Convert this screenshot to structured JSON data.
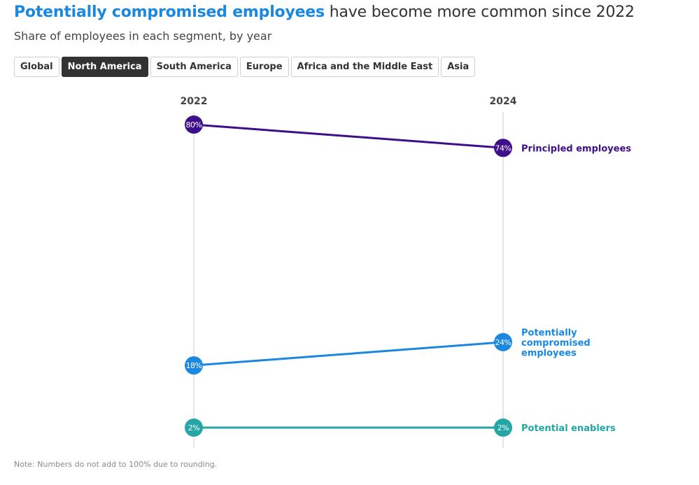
{
  "header": {
    "title_highlight": "Potentially compromised employees",
    "title_rest": " have become more common since 2022",
    "subtitle": "Share of employees in each segment, by year"
  },
  "tabs": [
    {
      "label": "Global",
      "active": false
    },
    {
      "label": "North America",
      "active": true
    },
    {
      "label": "South America",
      "active": false
    },
    {
      "label": "Europe",
      "active": false
    },
    {
      "label": "Africa and the Middle East",
      "active": false
    },
    {
      "label": "Asia",
      "active": false
    }
  ],
  "note": "Note: Numbers do not add to 100% due to rounding.",
  "chart_data": {
    "type": "line",
    "subtype": "slope",
    "title": "Potentially compromised employees have become more common since 2022",
    "subtitle": "Share of employees in each segment, by year",
    "region": "North America",
    "x": [
      "2022",
      "2024"
    ],
    "unit": "%",
    "series": [
      {
        "name": "Principled employees",
        "label_lines": [
          "Principled employees"
        ],
        "values": [
          80,
          74
        ],
        "color": "#3e0f8a"
      },
      {
        "name": "Potentially compromised employees",
        "label_lines": [
          "Potentially",
          "compromised",
          "employees"
        ],
        "values": [
          18,
          24
        ],
        "color": "#1a87e0"
      },
      {
        "name": "Potential enablers",
        "label_lines": [
          "Potential enablers"
        ],
        "values": [
          2,
          2
        ],
        "color": "#25a6a6"
      }
    ],
    "grid": false,
    "legend": "inline-right"
  }
}
